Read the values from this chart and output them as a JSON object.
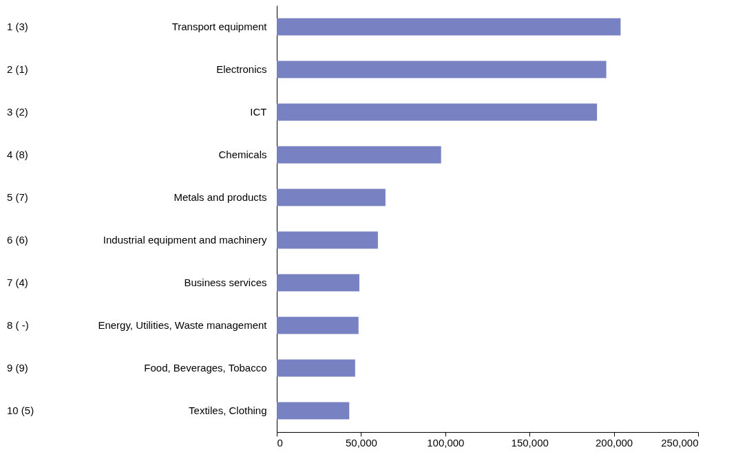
{
  "chart_data": {
    "type": "bar",
    "orientation": "horizontal",
    "categories": [
      "Transport equipment",
      "Electronics",
      "ICT",
      "Chemicals",
      "Metals and products",
      "Industrial equipment and machinery",
      "Business services",
      "Energy, Utilities, Waste management",
      "Food, Beverages, Tobacco",
      "Textiles, Clothing"
    ],
    "values": [
      204000,
      195500,
      190000,
      97500,
      64500,
      60000,
      49000,
      48500,
      46500,
      43000
    ],
    "color": "#7882c2",
    "xlim": [
      0,
      250000
    ],
    "xticks": [
      0,
      {
        "value": 50000,
        "label": "50,000"
      },
      {
        "value": 100000,
        "label": "100,000"
      },
      {
        "value": 150000,
        "label": "150,000"
      },
      {
        "value": 200000,
        "label": "200,000"
      },
      {
        "value": 250000,
        "label": "250,000"
      }
    ],
    "grid": false,
    "annotations": [
      "1 (3)",
      "2 (1)",
      "3 (2)",
      "4 (8)",
      "5 (7)",
      "6 (6)",
      "7 (4)",
      "8 ( -)",
      "9 (9)",
      "10 (5)"
    ]
  }
}
